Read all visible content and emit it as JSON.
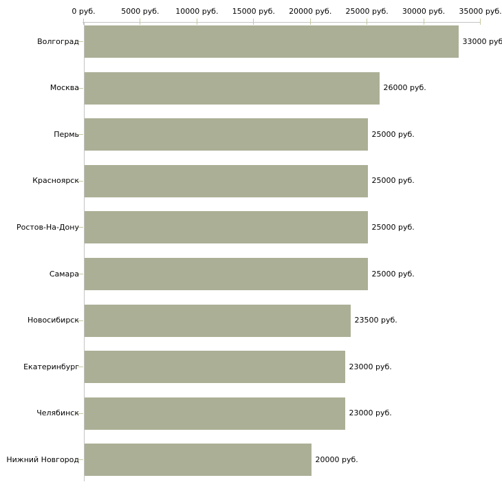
{
  "chart_data": {
    "type": "bar",
    "orientation": "horizontal",
    "title": "",
    "xlabel": "",
    "ylabel": "",
    "unit": "руб.",
    "categories": [
      "Волгоград",
      "Москва",
      "Пермь",
      "Красноярск",
      "Ростов-На-Дону",
      "Самара",
      "Новосибирск",
      "Екатеринбург",
      "Челябинск",
      "Нижний Новгород"
    ],
    "values": [
      33000,
      26000,
      25000,
      25000,
      25000,
      25000,
      23500,
      23000,
      23000,
      20000
    ],
    "value_labels": [
      "33000 руб",
      "26000 руб.",
      "25000 руб.",
      "25000 руб.",
      "25000 руб.",
      "25000 руб.",
      "23500 руб.",
      "23000 руб.",
      "23000 руб.",
      "20000 руб."
    ],
    "x_ticks": [
      0,
      5000,
      10000,
      15000,
      20000,
      25000,
      30000,
      35000
    ],
    "x_tick_labels": [
      "0 руб.",
      "5000 руб.",
      "10000 руб.",
      "15000 руб.",
      "20000 руб.",
      "25000 руб.",
      "30000 руб.",
      "35000 руб."
    ],
    "xlim": [
      0,
      35000
    ],
    "grid": "off",
    "legend": "none",
    "colors": {
      "bar": "#abaf95",
      "axis_line": "#c3c3c3",
      "tick_mark": "#c5c79e",
      "text": "#000000",
      "background": "#ffffff"
    }
  }
}
